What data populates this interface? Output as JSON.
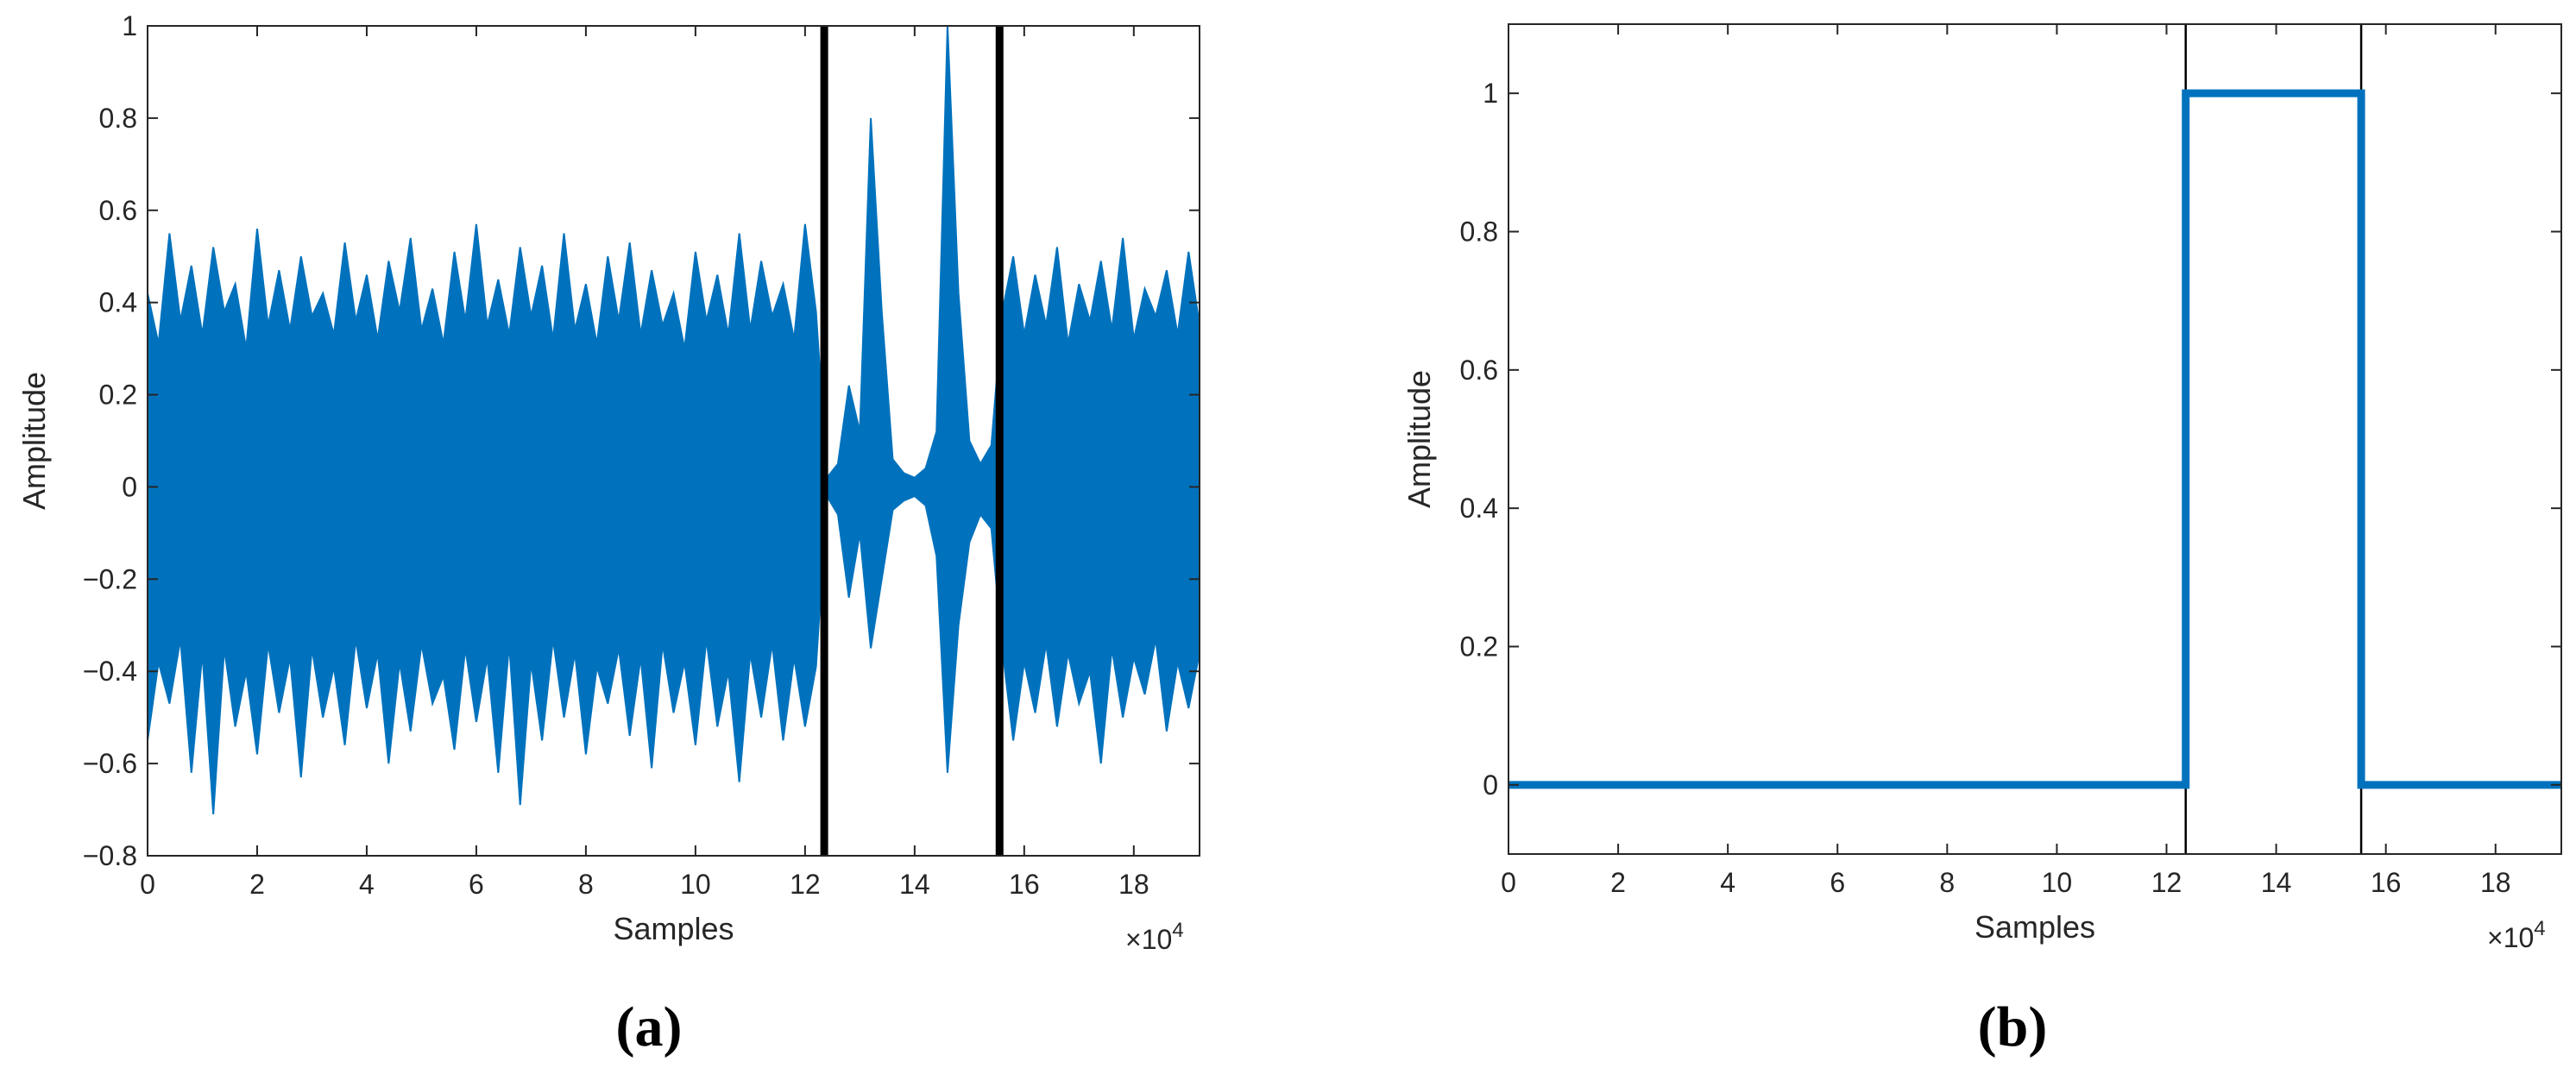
{
  "chart_data": [
    {
      "type": "range",
      "panel_label": "(a)",
      "x_label": "Samples",
      "y_label": "Amplitude",
      "x_exponent": {
        "base": "×10",
        "power": "4"
      },
      "color": "#0072bd",
      "vline_color": "#000000",
      "vlines": [
        12.35,
        15.55
      ],
      "xlim": [
        0,
        19.2
      ],
      "xticks": [
        0,
        2,
        4,
        6,
        8,
        10,
        12,
        14,
        16,
        18
      ],
      "ylim": [
        -0.8,
        1
      ],
      "yticks": [
        {
          "value": -0.8,
          "label": "−0.8"
        },
        {
          "value": -0.6,
          "label": "−0.6"
        },
        {
          "value": -0.4,
          "label": "−0.4"
        },
        {
          "value": -0.2,
          "label": "−0.2"
        },
        0,
        0.2,
        0.4,
        0.6,
        0.8,
        1
      ],
      "x": [
        0,
        0.2,
        0.4,
        0.6,
        0.8,
        1,
        1.2,
        1.4,
        1.6,
        1.8,
        2,
        2.2,
        2.4,
        2.6,
        2.8,
        3,
        3.2,
        3.4,
        3.6,
        3.8,
        4,
        4.2,
        4.4,
        4.6,
        4.8,
        5,
        5.2,
        5.4,
        5.6,
        5.8,
        6,
        6.2,
        6.4,
        6.6,
        6.8,
        7,
        7.2,
        7.4,
        7.6,
        7.8,
        8,
        8.2,
        8.4,
        8.6,
        8.8,
        9,
        9.2,
        9.4,
        9.6,
        9.8,
        10,
        10.2,
        10.4,
        10.6,
        10.8,
        11,
        11.2,
        11.4,
        11.6,
        11.8,
        12,
        12.2,
        12.4,
        12.6,
        12.8,
        13,
        13.2,
        13.4,
        13.6,
        13.8,
        14,
        14.2,
        14.4,
        14.6,
        14.8,
        15,
        15.2,
        15.4,
        15.6,
        15.8,
        16,
        16.2,
        16.4,
        16.6,
        16.8,
        17,
        17.2,
        17.4,
        17.6,
        17.8,
        18,
        18.2,
        18.4,
        18.6,
        18.8,
        19,
        19.2
      ],
      "upper": [
        0.42,
        0.31,
        0.55,
        0.36,
        0.48,
        0.33,
        0.52,
        0.38,
        0.44,
        0.3,
        0.56,
        0.35,
        0.47,
        0.34,
        0.5,
        0.37,
        0.42,
        0.33,
        0.53,
        0.36,
        0.46,
        0.32,
        0.49,
        0.38,
        0.54,
        0.34,
        0.43,
        0.31,
        0.51,
        0.36,
        0.57,
        0.35,
        0.45,
        0.33,
        0.52,
        0.37,
        0.48,
        0.32,
        0.55,
        0.34,
        0.44,
        0.31,
        0.5,
        0.36,
        0.53,
        0.33,
        0.47,
        0.35,
        0.42,
        0.3,
        0.51,
        0.36,
        0.46,
        0.33,
        0.55,
        0.34,
        0.49,
        0.37,
        0.44,
        0.32,
        0.57,
        0.38,
        0.02,
        0.05,
        0.22,
        0.12,
        0.8,
        0.38,
        0.06,
        0.03,
        0.02,
        0.04,
        0.12,
        1.0,
        0.42,
        0.1,
        0.05,
        0.09,
        0.38,
        0.5,
        0.33,
        0.46,
        0.35,
        0.52,
        0.31,
        0.44,
        0.36,
        0.49,
        0.34,
        0.54,
        0.32,
        0.43,
        0.37,
        0.47,
        0.33,
        0.51,
        0.35
      ],
      "lower": [
        -0.55,
        -0.38,
        -0.47,
        -0.33,
        -0.62,
        -0.36,
        -0.71,
        -0.35,
        -0.52,
        -0.4,
        -0.58,
        -0.34,
        -0.49,
        -0.37,
        -0.63,
        -0.35,
        -0.5,
        -0.39,
        -0.56,
        -0.33,
        -0.48,
        -0.36,
        -0.6,
        -0.38,
        -0.53,
        -0.34,
        -0.47,
        -0.41,
        -0.57,
        -0.35,
        -0.51,
        -0.37,
        -0.62,
        -0.34,
        -0.69,
        -0.38,
        -0.55,
        -0.33,
        -0.5,
        -0.36,
        -0.58,
        -0.39,
        -0.47,
        -0.35,
        -0.54,
        -0.37,
        -0.61,
        -0.34,
        -0.49,
        -0.38,
        -0.56,
        -0.33,
        -0.52,
        -0.4,
        -0.64,
        -0.36,
        -0.5,
        -0.34,
        -0.55,
        -0.37,
        -0.52,
        -0.39,
        -0.02,
        -0.06,
        -0.24,
        -0.1,
        -0.35,
        -0.2,
        -0.05,
        -0.03,
        -0.02,
        -0.04,
        -0.15,
        -0.62,
        -0.3,
        -0.12,
        -0.06,
        -0.09,
        -0.35,
        -0.55,
        -0.38,
        -0.49,
        -0.34,
        -0.52,
        -0.36,
        -0.47,
        -0.4,
        -0.6,
        -0.35,
        -0.5,
        -0.37,
        -0.45,
        -0.33,
        -0.53,
        -0.38,
        -0.48,
        -0.36
      ]
    },
    {
      "type": "line",
      "panel_label": "(b)",
      "x_label": "Samples",
      "y_label": "Amplitude",
      "x_exponent": {
        "base": "×10",
        "power": "4"
      },
      "color": "#0072bd",
      "vline_color": "#000000",
      "vlines": [
        12.35,
        15.55
      ],
      "xlim": [
        0,
        19.2
      ],
      "xticks": [
        0,
        2,
        4,
        6,
        8,
        10,
        12,
        14,
        16,
        18
      ],
      "ylim": [
        -0.1,
        1.1
      ],
      "yticks": [
        0,
        0.2,
        0.4,
        0.6,
        0.8,
        1
      ],
      "x": [
        0,
        12.35,
        12.35,
        15.55,
        15.55,
        19.2
      ],
      "values": [
        0,
        0,
        1,
        1,
        0,
        0
      ]
    }
  ]
}
